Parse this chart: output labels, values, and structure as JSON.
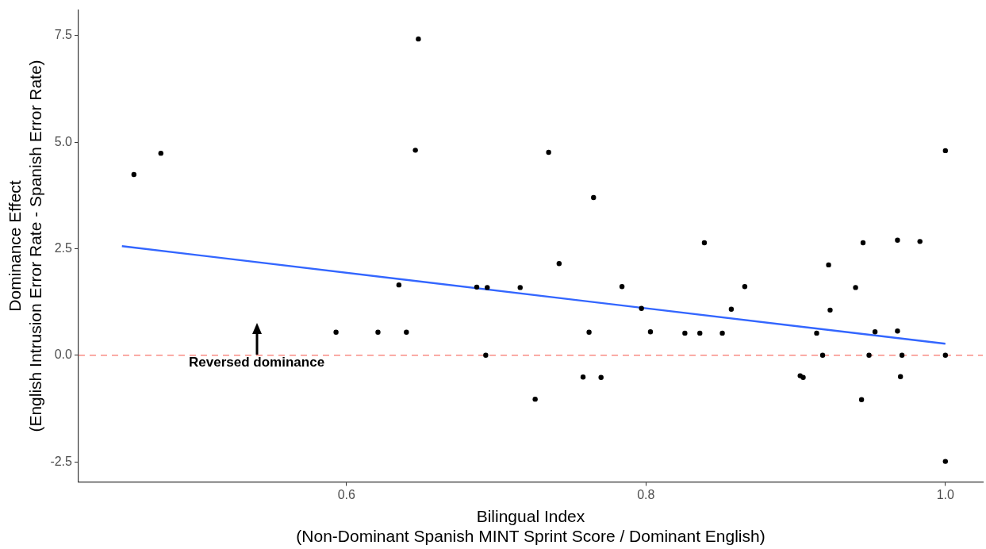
{
  "chart_data": {
    "type": "scatter",
    "xlabel": "Bilingual Index\n(Non-Dominant Spanish MINT Sprint Score / Dominant English)",
    "ylabel": "Dominance Effect\n(English Intrusion Error Rate - Spanish Error Rate)",
    "xlim": [
      0.421,
      1.025
    ],
    "xticks": [
      0.6,
      0.8,
      {
        "value": 1,
        "label": "1.0"
      }
    ],
    "ylim": [
      -2.97,
      8.1
    ],
    "yticks": [
      -2.5,
      {
        "value": 0,
        "label": "0.0"
      },
      2.5,
      {
        "value": 5,
        "label": "5.0"
      },
      7.5
    ],
    "marker": "circle",
    "legend": false,
    "series": [
      {
        "type": "scatter",
        "color": "#000000",
        "x": [
          0.458,
          0.476,
          0.648,
          0.646,
          0.635,
          0.687,
          0.694,
          0.593,
          0.621,
          0.64,
          0.693,
          0.716,
          0.735,
          0.765,
          0.742,
          0.784,
          0.797,
          0.762,
          0.803,
          0.826,
          0.836,
          0.851,
          0.839,
          0.857,
          0.866,
          0.726,
          0.758,
          0.77,
          0.903,
          0.905,
          0.914,
          0.918,
          0.922,
          0.923,
          0.94,
          0.945,
          0.944,
          0.949,
          0.953,
          0.968,
          0.968,
          0.97,
          0.971,
          0.983,
          1.0,
          1.0,
          1.0
        ],
        "values": [
          4.24,
          4.74,
          7.42,
          4.81,
          1.65,
          1.6,
          1.59,
          0.54,
          0.54,
          0.54,
          0.0,
          1.59,
          4.76,
          3.7,
          2.15,
          1.61,
          1.1,
          0.54,
          0.55,
          0.52,
          0.52,
          0.52,
          2.64,
          1.08,
          1.61,
          -1.03,
          -0.51,
          -0.52,
          -0.48,
          -0.52,
          0.52,
          0.0,
          2.12,
          1.06,
          1.59,
          2.64,
          -1.04,
          0.0,
          0.55,
          0.57,
          2.7,
          -0.5,
          0.0,
          2.67,
          4.8,
          0.0,
          -2.49
        ]
      },
      {
        "type": "line",
        "color": "#3366ff",
        "marker": "none",
        "line_style": "solid",
        "x": [
          0.45,
          1.0
        ],
        "values": [
          2.56,
          0.27
        ]
      }
    ],
    "ref_lines": [
      {
        "axis": "y",
        "value": 0,
        "color": "#f8766d",
        "line_style": "dashed"
      }
    ],
    "annotations": [
      {
        "text": "Reversed dominance",
        "x": 0.54,
        "y": 0
      }
    ]
  }
}
